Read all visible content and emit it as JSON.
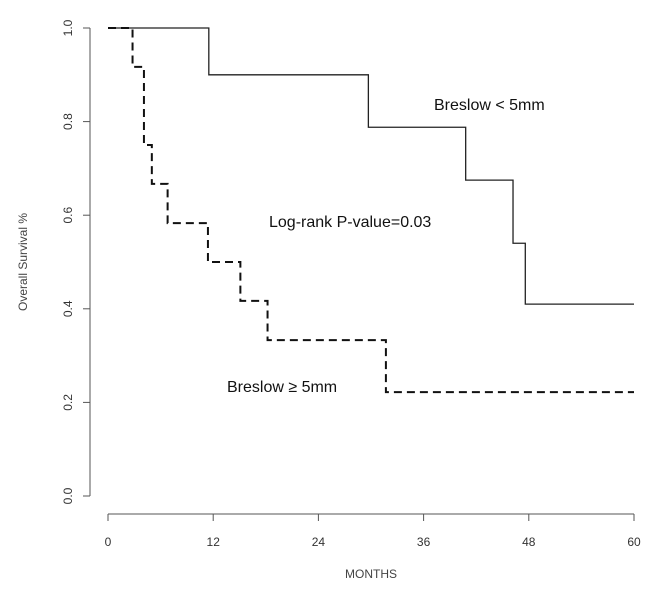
{
  "chart_data": {
    "type": "line",
    "xlabel": "MONTHS",
    "ylabel": "Overall Survival %",
    "xlim": [
      0,
      60
    ],
    "ylim": [
      0,
      1
    ],
    "xticks": [
      0,
      12,
      24,
      36,
      48,
      60
    ],
    "yticks": [
      0.0,
      0.2,
      0.4,
      0.6,
      0.8,
      1.0
    ],
    "xtick_labels": [
      "0",
      "12",
      "24",
      "36",
      "48",
      "60"
    ],
    "ytick_labels": [
      "0.0",
      "0.2",
      "0.4",
      "0.6",
      "0.8",
      "1.0"
    ],
    "grid": false,
    "step": true,
    "series": [
      {
        "name": "Breslow < 5mm",
        "line_style": "solid",
        "x": [
          0,
          11.5,
          29.7,
          40.8,
          46.2,
          47.6,
          60
        ],
        "y": [
          1.0,
          0.9,
          0.788,
          0.675,
          0.54,
          0.41,
          0.41
        ]
      },
      {
        "name": "Breslow ≥ 5mm",
        "line_style": "dashed",
        "x": [
          0,
          2.8,
          4.1,
          5.0,
          6.8,
          11.4,
          15.1,
          18.2,
          31.7,
          60
        ],
        "y": [
          1.0,
          0.917,
          0.75,
          0.667,
          0.583,
          0.5,
          0.417,
          0.333,
          0.222,
          0.222
        ]
      }
    ],
    "annotations": {
      "upper_label": "Breslow < 5mm",
      "pvalue": "Log-rank P-value=0.03",
      "lower_label": "Breslow ≥ 5mm"
    }
  }
}
